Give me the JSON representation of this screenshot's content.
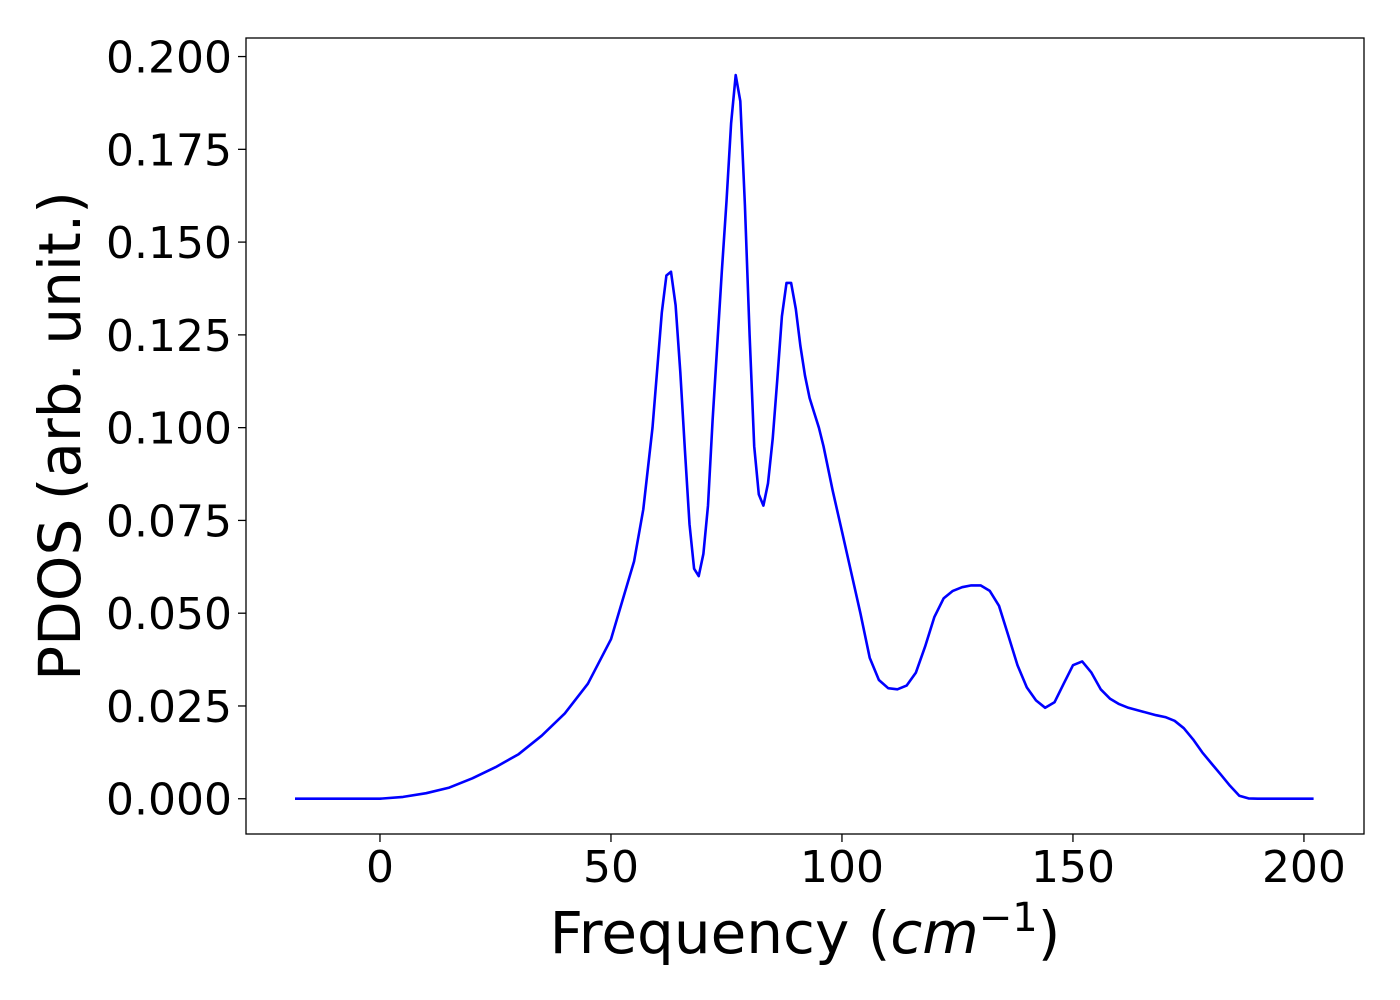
{
  "chart_data": {
    "type": "line",
    "title": "",
    "xlabel_prefix": "Frequency (",
    "xlabel_math": "cm",
    "xlabel_sup": "−1",
    "xlabel_suffix": ")",
    "ylabel": "PDOS (arb. unit.)",
    "xlim": [
      -29,
      213
    ],
    "ylim": [
      -0.0095,
      0.205
    ],
    "xticks": [
      0,
      50,
      100,
      150,
      200
    ],
    "xtick_labels": [
      "0",
      "50",
      "100",
      "150",
      "200"
    ],
    "yticks": [
      0.0,
      0.025,
      0.05,
      0.075,
      0.1,
      0.125,
      0.15,
      0.175,
      0.2
    ],
    "ytick_labels": [
      "0.000",
      "0.025",
      "0.050",
      "0.075",
      "0.100",
      "0.125",
      "0.150",
      "0.175",
      "0.200"
    ],
    "grid": false,
    "legend": "none",
    "series": [
      {
        "color": "#0000ff",
        "x": [
          -18.4,
          0,
          5,
          10,
          15,
          20,
          25,
          30,
          35,
          40,
          45,
          50,
          55,
          57,
          59,
          61,
          62,
          63,
          64,
          65,
          66,
          67,
          68,
          69,
          70,
          71,
          72,
          73,
          74,
          75,
          76,
          77,
          78,
          79,
          80,
          81,
          82,
          83,
          84,
          85,
          86,
          87,
          88,
          89,
          90,
          91,
          92,
          93,
          94,
          95,
          96,
          98,
          100,
          102,
          104,
          106,
          108,
          110,
          112,
          114,
          116,
          118,
          120,
          122,
          124,
          126,
          128,
          130,
          132,
          134,
          136,
          138,
          140,
          142,
          144,
          146,
          148,
          150,
          152,
          154,
          156,
          158,
          160,
          162,
          165,
          168,
          170,
          172,
          174,
          176,
          178,
          180,
          182,
          184,
          186,
          188,
          190,
          195,
          202.1
        ],
        "y": [
          0.0,
          0.0,
          0.0005,
          0.0015,
          0.003,
          0.0055,
          0.0085,
          0.012,
          0.017,
          0.023,
          0.031,
          0.043,
          0.064,
          0.078,
          0.1,
          0.131,
          0.141,
          0.142,
          0.133,
          0.115,
          0.094,
          0.074,
          0.062,
          0.06,
          0.066,
          0.079,
          0.102,
          0.122,
          0.142,
          0.161,
          0.182,
          0.195,
          0.188,
          0.16,
          0.125,
          0.095,
          0.082,
          0.079,
          0.085,
          0.097,
          0.113,
          0.13,
          0.139,
          0.139,
          0.132,
          0.122,
          0.114,
          0.108,
          0.104,
          0.1,
          0.095,
          0.083,
          0.072,
          0.061,
          0.05,
          0.038,
          0.032,
          0.0298,
          0.0295,
          0.0305,
          0.034,
          0.041,
          0.049,
          0.054,
          0.056,
          0.057,
          0.0575,
          0.0575,
          0.056,
          0.052,
          0.044,
          0.036,
          0.03,
          0.0265,
          0.0245,
          0.026,
          0.031,
          0.036,
          0.037,
          0.034,
          0.0295,
          0.027,
          0.0255,
          0.0245,
          0.0235,
          0.0225,
          0.022,
          0.021,
          0.019,
          0.016,
          0.0125,
          0.0095,
          0.0065,
          0.0035,
          0.0008,
          0.0001,
          0.0,
          0.0,
          0.0
        ]
      }
    ]
  }
}
